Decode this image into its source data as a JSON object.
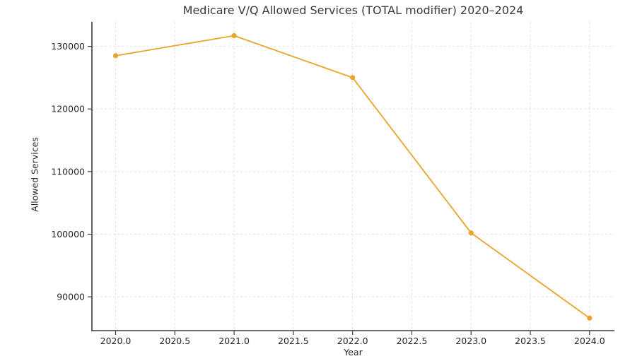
{
  "figure": {
    "background": "#ffffff"
  },
  "chart_data": {
    "type": "line",
    "title": "Medicare V/Q Allowed Services (TOTAL modifier) 2020–2024",
    "xlabel": "Year",
    "ylabel": "Allowed Services",
    "x": [
      2020,
      2021,
      2022,
      2023,
      2024
    ],
    "series": [
      {
        "name": "Allowed Services (TOTAL modifier)",
        "values": [
          128500,
          131700,
          125000,
          100200,
          86600
        ]
      }
    ],
    "xlim": [
      2019.8,
      2024.21
    ],
    "ylim": [
      84600,
      133900
    ],
    "xticks": [
      2020.0,
      2020.5,
      2021.0,
      2021.5,
      2022.0,
      2022.5,
      2023.0,
      2023.5,
      2024.0
    ],
    "xtick_labels": [
      "2020.0",
      "2020.5",
      "2021.0",
      "2021.5",
      "2022.0",
      "2022.5",
      "2023.0",
      "2023.5",
      "2024.0"
    ],
    "yticks": [
      90000,
      100000,
      110000,
      120000,
      130000
    ],
    "ytick_labels": [
      "90000",
      "100000",
      "110000",
      "120000",
      "130000"
    ],
    "grid": true,
    "grid_style": "dashed",
    "legend_position": "none",
    "marker": "circle",
    "colors": {
      "line": "#E9A42B",
      "marker": "#E9A42B",
      "grid": "#E2E2E2",
      "spine": "#3C3C3C",
      "tick": "#3C3C3C",
      "title_text": "#3A3A3A",
      "tick_text": "#262626",
      "axis_label_text": "#2B2B2B"
    }
  }
}
